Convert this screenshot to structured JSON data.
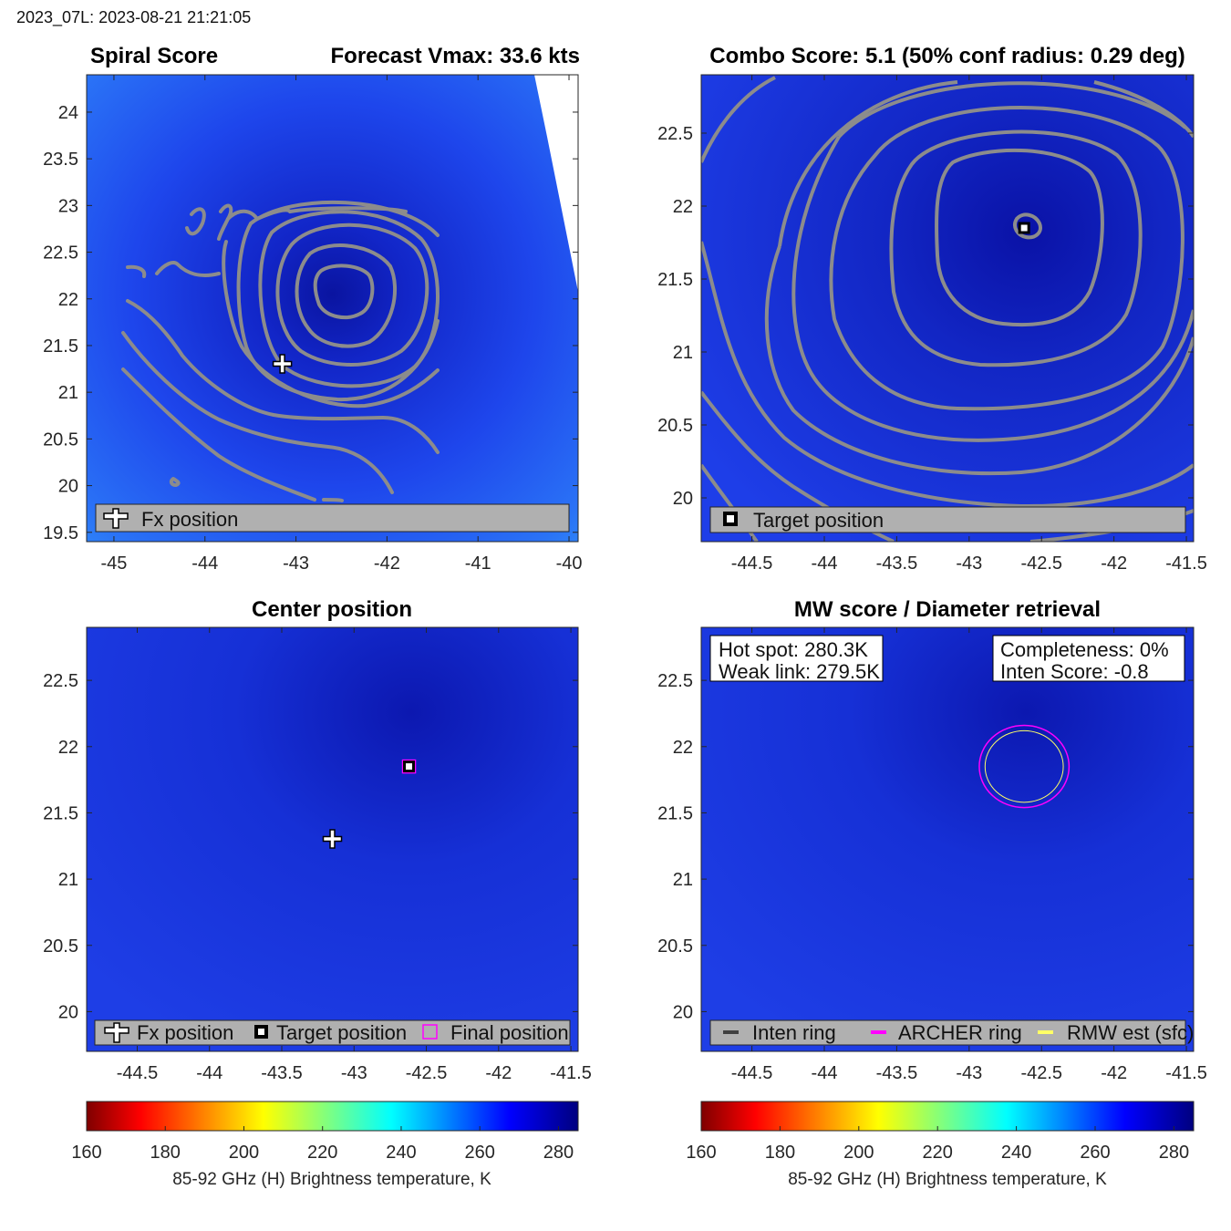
{
  "header": {
    "stamp": "2023_07L: 2023-08-21 21:21:05"
  },
  "colors": {
    "field_dark": "#0a12a8",
    "field_mid": "#1e3ef0",
    "field_light": "#2a6cf5",
    "contour": "#8c8c8c",
    "legend_bg": "#b0b0b0",
    "archer": "#ff00ff",
    "rmw": "#ffff66"
  },
  "colorbar": {
    "label": "85-92 GHz (H) Brightness temperature, K",
    "range": [
      160,
      285
    ],
    "ticks": [
      "160",
      "180",
      "200",
      "220",
      "240",
      "260",
      "280"
    ]
  },
  "chart_data": [
    {
      "type": "heatmap",
      "panel": "spiral",
      "title_left": "Spiral Score",
      "title_right": "Forecast Vmax: 33.6 kts",
      "xlim": [
        -45.3,
        -39.9
      ],
      "ylim": [
        19.4,
        24.4
      ],
      "xticks": [
        "-45",
        "-44",
        "-43",
        "-42",
        "-41",
        "-40"
      ],
      "xtick_values": [
        -45,
        -44,
        -43,
        -42,
        -41,
        -40
      ],
      "yticks": [
        "19.5",
        "20",
        "20.5",
        "21",
        "21.5",
        "22",
        "22.5",
        "23",
        "23.5",
        "24"
      ],
      "ytick_values": [
        19.5,
        20,
        20.5,
        21,
        21.5,
        22,
        22.5,
        23,
        23.5,
        24
      ],
      "fx_position": {
        "lon": -43.15,
        "lat": 21.3
      },
      "contour_center": {
        "lon": -42.5,
        "lat": 22.1
      },
      "legend": [
        "Fx position"
      ]
    },
    {
      "type": "heatmap",
      "panel": "combo",
      "title": "Combo Score: 5.1  (50% conf radius: 0.29 deg)",
      "xlim": [
        -44.85,
        -41.45
      ],
      "ylim": [
        19.7,
        22.9
      ],
      "xticks": [
        "-44.5",
        "-44",
        "-43.5",
        "-43",
        "-42.5",
        "-42",
        "-41.5"
      ],
      "xtick_values": [
        -44.5,
        -44,
        -43.5,
        -43,
        -42.5,
        -42,
        -41.5
      ],
      "yticks": [
        "20",
        "20.5",
        "21",
        "21.5",
        "22",
        "22.5"
      ],
      "ytick_values": [
        20,
        20.5,
        21,
        21.5,
        22,
        22.5
      ],
      "target_position": {
        "lon": -42.62,
        "lat": 21.85
      },
      "legend": [
        "Target position"
      ]
    },
    {
      "type": "heatmap",
      "panel": "center",
      "title": "Center position",
      "xlim": [
        -44.85,
        -41.45
      ],
      "ylim": [
        19.7,
        22.9
      ],
      "xticks": [
        "-44.5",
        "-44",
        "-43.5",
        "-43",
        "-42.5",
        "-42",
        "-41.5"
      ],
      "xtick_values": [
        -44.5,
        -44,
        -43.5,
        -43,
        -42.5,
        -42,
        -41.5
      ],
      "yticks": [
        "20",
        "20.5",
        "21",
        "21.5",
        "22",
        "22.5"
      ],
      "ytick_values": [
        20,
        20.5,
        21,
        21.5,
        22,
        22.5
      ],
      "fx_position": {
        "lon": -43.15,
        "lat": 21.3
      },
      "target_position": {
        "lon": -42.62,
        "lat": 21.85
      },
      "final_position": {
        "lon": -42.62,
        "lat": 21.85
      },
      "legend": [
        "Fx position",
        "Target position",
        "Final position"
      ]
    },
    {
      "type": "heatmap",
      "panel": "mw",
      "title": "MW score / Diameter retrieval",
      "xlim": [
        -44.85,
        -41.45
      ],
      "ylim": [
        19.7,
        22.9
      ],
      "xticks": [
        "-44.5",
        "-44",
        "-43.5",
        "-43",
        "-42.5",
        "-42",
        "-41.5"
      ],
      "xtick_values": [
        -44.5,
        -44,
        -43.5,
        -43,
        -42.5,
        -42,
        -41.5
      ],
      "yticks": [
        "20",
        "20.5",
        "21",
        "21.5",
        "22",
        "22.5"
      ],
      "ytick_values": [
        20,
        20.5,
        21,
        21.5,
        22,
        22.5
      ],
      "ring_center": {
        "lon": -42.62,
        "lat": 21.85
      },
      "archer_ring_radius_deg": 0.31,
      "rmw_radius_deg": 0.27,
      "hot_spot": "Hot spot: 280.3K",
      "weak_link": "Weak link: 279.5K",
      "completeness": "Completeness: 0%",
      "inten_score": "Inten Score: -0.8",
      "legend": [
        "Inten ring",
        "ARCHER ring",
        "RMW est (sfc)"
      ]
    }
  ]
}
